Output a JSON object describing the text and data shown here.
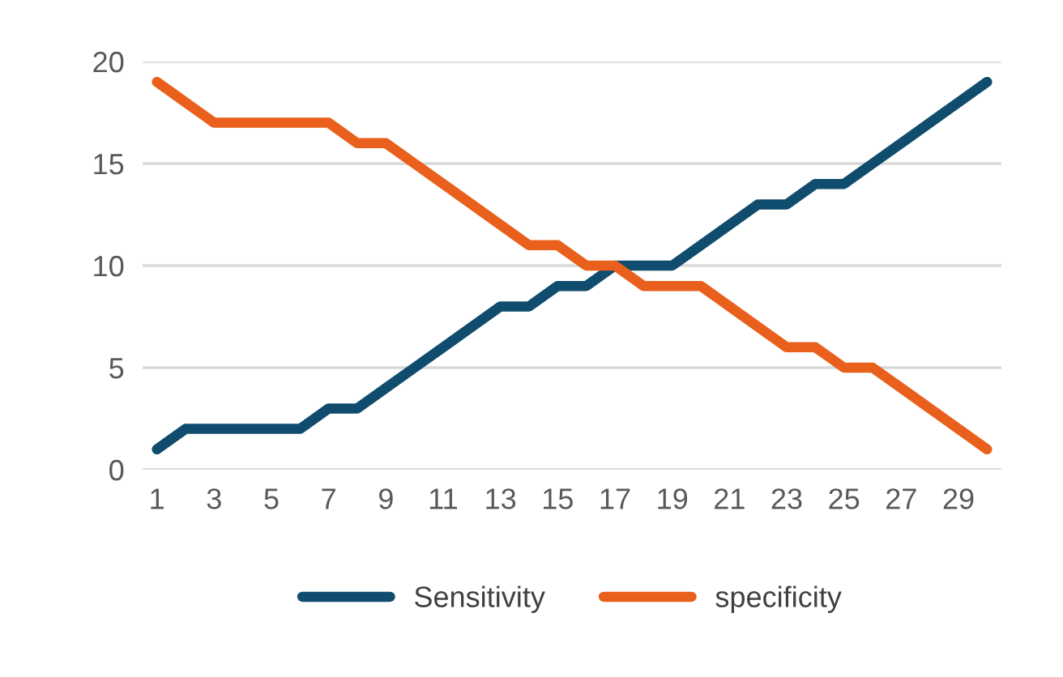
{
  "chart_data": {
    "type": "line",
    "categories": [
      "1",
      null,
      "3",
      null,
      "5",
      null,
      "7",
      null,
      "9",
      null,
      "11",
      null,
      "13",
      null,
      "15",
      null,
      "17",
      null,
      "19",
      null,
      "21",
      null,
      "23",
      null,
      "25",
      null,
      "27",
      null,
      "29",
      null
    ],
    "series": [
      {
        "name": "Sensitivity",
        "color": "#0f4c6d",
        "values": [
          1,
          2,
          2,
          2,
          2,
          2,
          3,
          3,
          4,
          5,
          6,
          7,
          8,
          8,
          9,
          9,
          10,
          10,
          10,
          11,
          12,
          13,
          13,
          14,
          14,
          15,
          16,
          17,
          18,
          19
        ]
      },
      {
        "name": "specificity",
        "color": "#e8601c",
        "values": [
          19,
          18,
          17,
          17,
          17,
          17,
          17,
          16,
          16,
          15,
          14,
          13,
          12,
          11,
          11,
          10,
          10,
          9,
          9,
          9,
          8,
          7,
          6,
          6,
          5,
          5,
          4,
          3,
          2,
          1
        ]
      }
    ],
    "ylim": [
      0,
      20
    ],
    "yticks": [
      0,
      5,
      10,
      15,
      20
    ],
    "grid": "y",
    "legend": "bottom",
    "marker": "none",
    "line_style": "solid"
  }
}
